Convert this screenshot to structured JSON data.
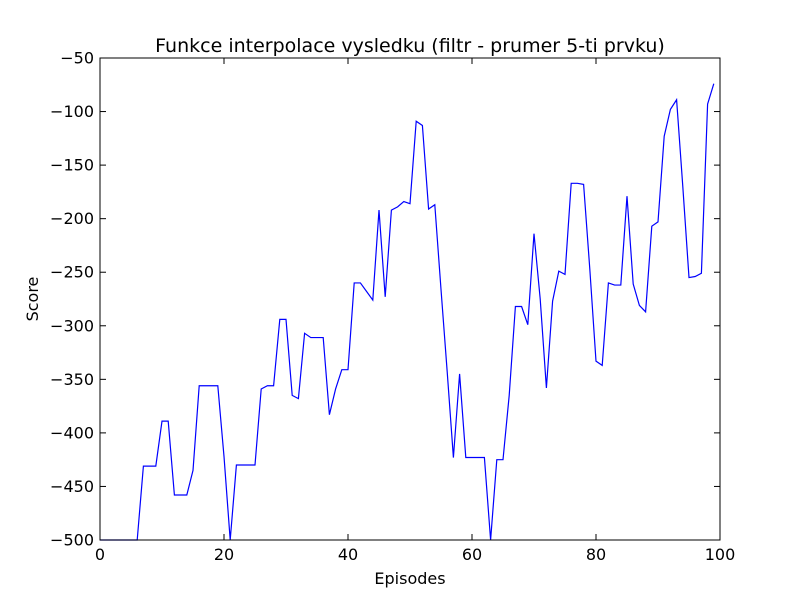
{
  "chart_data": {
    "type": "line",
    "title": "Funkce interpolace vysledku (filtr - prumer 5-ti prvku)",
    "xlabel": "Episodes",
    "ylabel": "Score",
    "xlim": [
      0,
      100
    ],
    "ylim": [
      -500,
      -50
    ],
    "xticks": [
      0,
      20,
      40,
      60,
      80,
      100
    ],
    "xtick_labels": [
      "0",
      "20",
      "40",
      "60",
      "80",
      "100"
    ],
    "yticks": [
      -500,
      -450,
      -400,
      -350,
      -300,
      -250,
      -200,
      -150,
      -100,
      -50
    ],
    "ytick_labels": [
      "−500",
      "−450",
      "−400",
      "−350",
      "−300",
      "−250",
      "−200",
      "−150",
      "−100",
      "−50"
    ],
    "grid": false,
    "series": [
      {
        "color": "#0000ff",
        "x": [
          0,
          1,
          2,
          3,
          4,
          5,
          6,
          7,
          8,
          9,
          10,
          11,
          12,
          13,
          14,
          15,
          16,
          17,
          18,
          19,
          20,
          21,
          22,
          23,
          24,
          25,
          26,
          27,
          28,
          29,
          30,
          31,
          32,
          33,
          34,
          35,
          36,
          37,
          38,
          39,
          40,
          41,
          42,
          43,
          44,
          45,
          46,
          47,
          48,
          49,
          50,
          51,
          52,
          53,
          54,
          55,
          56,
          57,
          58,
          59,
          60,
          61,
          62,
          63,
          64,
          65,
          66,
          67,
          68,
          69,
          70,
          71,
          72,
          73,
          74,
          75,
          76,
          77,
          78,
          79,
          80,
          81,
          82,
          83,
          84,
          85,
          86,
          87,
          88,
          89,
          90,
          91,
          92,
          93,
          94,
          95,
          96,
          97,
          98,
          99
        ],
        "y": [
          -500,
          -500,
          -500,
          -500,
          -500,
          -500,
          -500,
          -431,
          -431,
          -431,
          -389,
          -389,
          -458,
          -458,
          -458,
          -435,
          -356,
          -356,
          -356,
          -356,
          -422,
          -500,
          -430,
          -430,
          -430,
          -430,
          -359,
          -356,
          -356,
          -294,
          -294,
          -365,
          -368,
          -307,
          -311,
          -311,
          -311,
          -383,
          -359,
          -341,
          -341,
          -260,
          -260,
          -268,
          -276,
          -192,
          -273,
          -192,
          -189,
          -184,
          -186,
          -109,
          -113,
          -191,
          -187,
          -266,
          -343,
          -423,
          -345,
          -423,
          -423,
          -423,
          -423,
          -500,
          -425,
          -425,
          -365,
          -282,
          -282,
          -299,
          -214,
          -275,
          -358,
          -277,
          -249,
          -252,
          -167,
          -167,
          -168,
          -247,
          -333,
          -337,
          -260,
          -262,
          -262,
          -179,
          -261,
          -281,
          -287,
          -207,
          -203,
          -123,
          -98,
          -89,
          -170,
          -255,
          -254,
          -251,
          -93,
          -74
        ]
      }
    ]
  }
}
